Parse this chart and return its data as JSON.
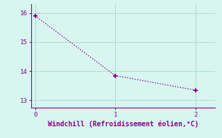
{
  "x": [
    0,
    1,
    2
  ],
  "y": [
    15.9,
    13.85,
    13.35
  ],
  "line_color": "#880088",
  "marker": "+",
  "marker_size": 5,
  "marker_linewidth": 1.5,
  "background_color": "#d8f5f0",
  "grid_color": "#aaddd5",
  "tick_color": "#880088",
  "xlabel": "Windchill (Refroidissement éolien,°C)",
  "xlabel_fontsize": 7,
  "xlim": [
    -0.05,
    2.25
  ],
  "ylim": [
    12.75,
    16.3
  ],
  "yticks": [
    13,
    14,
    15,
    16
  ],
  "xticks": [
    0,
    1,
    2
  ],
  "line_width": 1.0,
  "linestyle": ":"
}
